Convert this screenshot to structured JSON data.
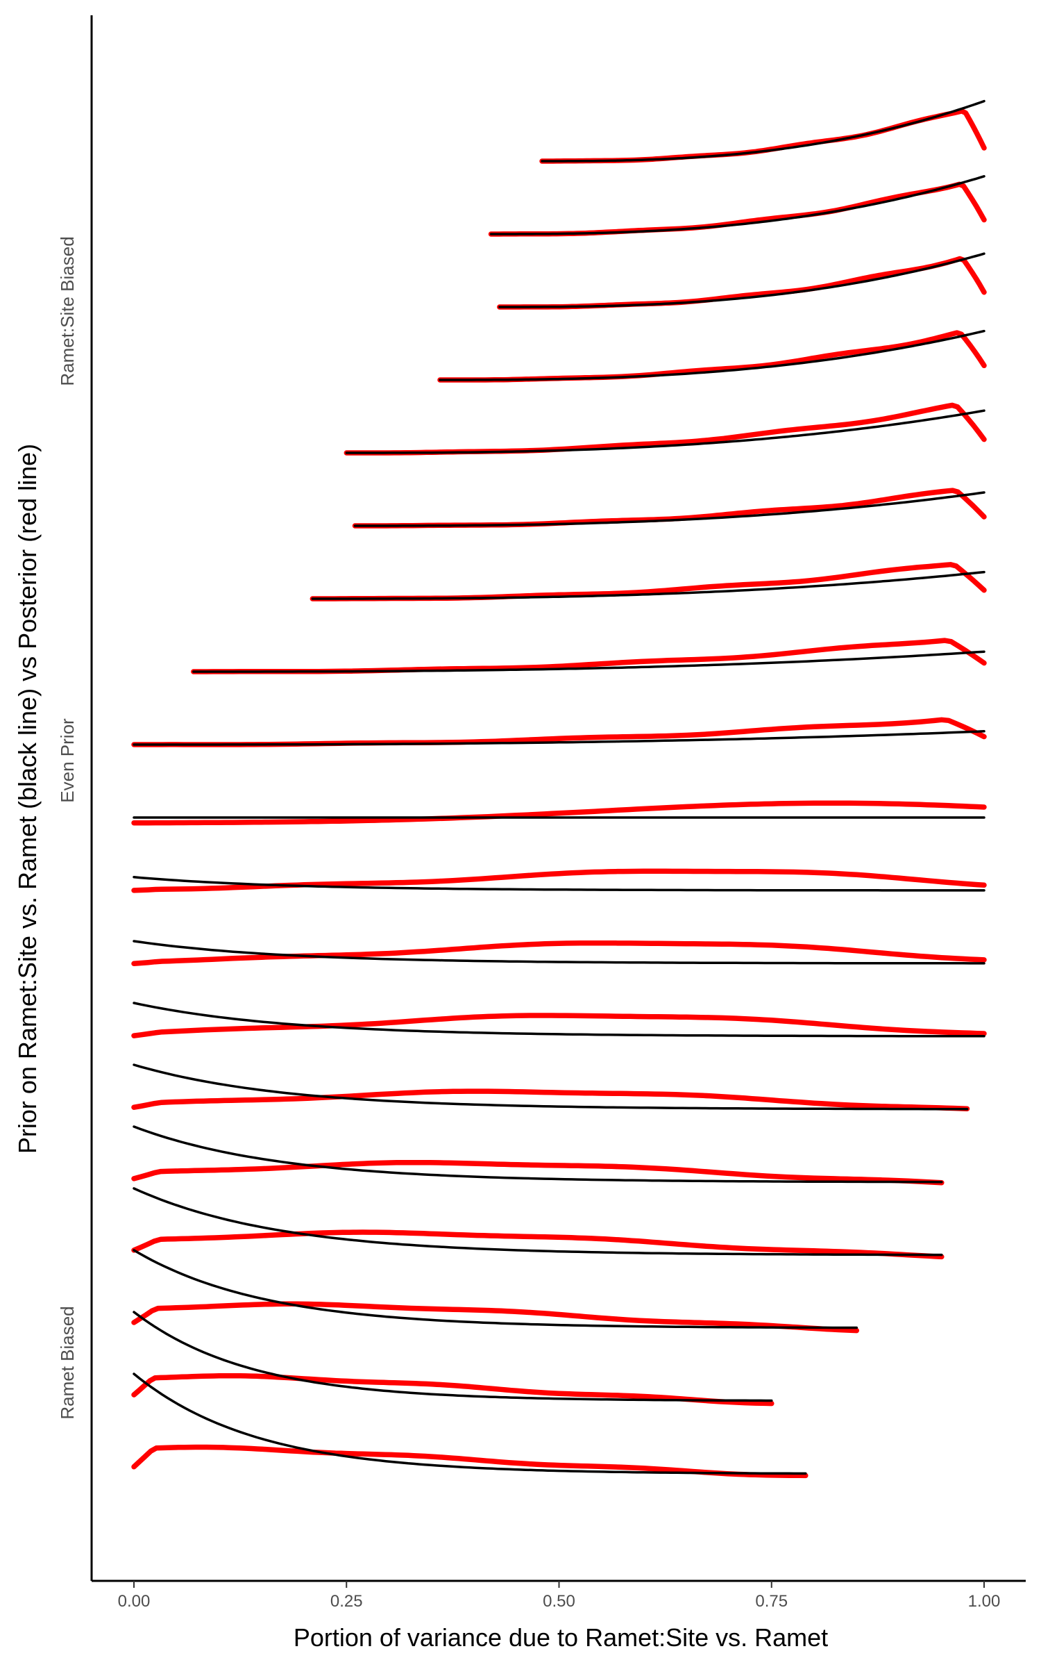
{
  "chart_data": {
    "type": "ridgeline",
    "xlabel": "Portion of variance due to Ramet:Site vs. Ramet",
    "ylabel": "Prior on Ramet:Site vs. Ramet (black line) vs Posterior (red line)",
    "xlim": [
      0,
      1
    ],
    "x_ticks": [
      "0.00",
      "0.25",
      "0.50",
      "0.75",
      "1.00"
    ],
    "category_labels": [
      "Ramet:Site Biased",
      "Even Prior",
      "Ramet Biased"
    ],
    "grid": false,
    "colors": {
      "prior": "#000000",
      "posterior": "#ff0000"
    },
    "series": [
      {
        "min": 0.48,
        "max": 1.0,
        "prior_shape": "rising",
        "prior_strength": 2.7,
        "post_strength": 2.2
      },
      {
        "min": 0.42,
        "max": 1.0,
        "prior_shape": "rising",
        "prior_strength": 2.6,
        "post_strength": 2.2
      },
      {
        "min": 0.43,
        "max": 1.0,
        "prior_shape": "rising",
        "prior_strength": 2.4,
        "post_strength": 2.1
      },
      {
        "min": 0.36,
        "max": 1.0,
        "prior_shape": "rising",
        "prior_strength": 2.2,
        "post_strength": 2.0
      },
      {
        "min": 0.25,
        "max": 1.0,
        "prior_shape": "rising",
        "prior_strength": 1.9,
        "post_strength": 2.0
      },
      {
        "min": 0.26,
        "max": 1.0,
        "prior_shape": "rising",
        "prior_strength": 1.5,
        "post_strength": 1.5
      },
      {
        "min": 0.21,
        "max": 1.0,
        "prior_shape": "rising",
        "prior_strength": 1.2,
        "post_strength": 1.5
      },
      {
        "min": 0.07,
        "max": 1.0,
        "prior_shape": "rising",
        "prior_strength": 0.9,
        "post_strength": 1.4
      },
      {
        "min": 0.0,
        "max": 1.0,
        "prior_shape": "rising",
        "prior_strength": 0.6,
        "post_strength": 1.1
      },
      {
        "min": 0.0,
        "max": 1.0,
        "prior_shape": "flat",
        "prior_strength": 0.0,
        "post_strength": 0.9
      },
      {
        "min": 0.0,
        "max": 1.0,
        "prior_shape": "falling",
        "prior_strength": 0.6,
        "post_strength": 0.8
      },
      {
        "min": 0.0,
        "max": 1.0,
        "prior_shape": "falling",
        "prior_strength": 1.0,
        "post_strength": 0.8
      },
      {
        "min": 0.0,
        "max": 1.0,
        "prior_shape": "falling",
        "prior_strength": 1.5,
        "post_strength": 0.8
      },
      {
        "min": 0.0,
        "max": 0.98,
        "prior_shape": "falling",
        "prior_strength": 2.0,
        "post_strength": 0.8
      },
      {
        "min": 0.0,
        "max": 0.95,
        "prior_shape": "falling",
        "prior_strength": 2.5,
        "post_strength": 0.9
      },
      {
        "min": 0.0,
        "max": 0.95,
        "prior_shape": "falling",
        "prior_strength": 3.0,
        "post_strength": 1.1
      },
      {
        "min": 0.0,
        "max": 0.85,
        "prior_shape": "falling",
        "prior_strength": 3.5,
        "post_strength": 1.2
      },
      {
        "min": 0.0,
        "max": 0.75,
        "prior_shape": "falling",
        "prior_strength": 4.0,
        "post_strength": 1.3
      },
      {
        "min": 0.0,
        "max": 0.79,
        "prior_shape": "falling",
        "prior_strength": 4.5,
        "post_strength": 1.4
      }
    ]
  }
}
